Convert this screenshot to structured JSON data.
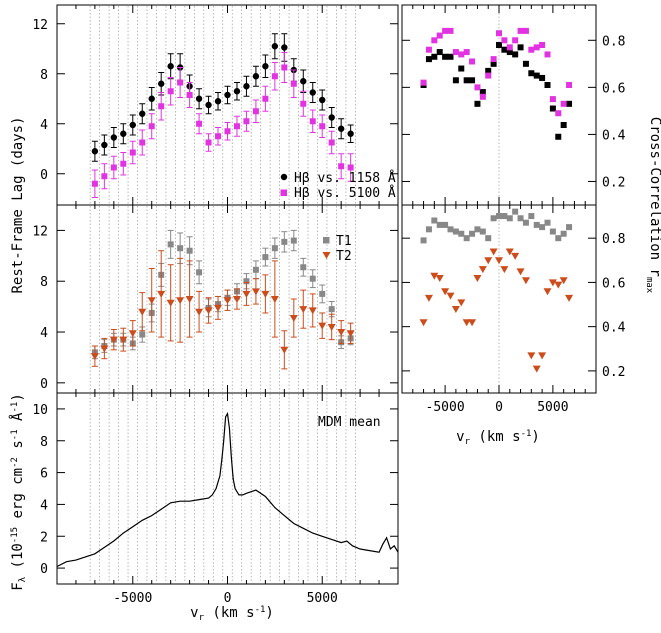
{
  "chart_data": [
    {
      "type": "scatter",
      "panel": "lag-top",
      "xlim": [
        -9000,
        9000
      ],
      "ylim": [
        -2.5,
        13.5
      ],
      "yticks": [
        0,
        4,
        8,
        12
      ],
      "series": [
        {
          "name": "Hβ vs. 1158 Å",
          "color": "#000000",
          "marker": "circle",
          "x": [
            -7000,
            -6500,
            -6000,
            -5500,
            -5000,
            -4500,
            -4000,
            -3500,
            -3000,
            -2500,
            -2000,
            -1500,
            -1000,
            -500,
            0,
            500,
            1000,
            1500,
            2000,
            2500,
            3000,
            3500,
            4000,
            4500,
            5000,
            5500,
            6000,
            6500
          ],
          "y": [
            1.8,
            2.3,
            2.9,
            3.2,
            3.9,
            4.8,
            6.0,
            7.2,
            8.6,
            8.5,
            7.0,
            6.0,
            5.5,
            5.8,
            6.3,
            6.6,
            7.0,
            7.8,
            8.6,
            10.2,
            10.1,
            8.3,
            7.4,
            6.5,
            5.9,
            4.5,
            3.6,
            3.2
          ],
          "err": [
            0.8,
            0.8,
            0.8,
            0.8,
            0.8,
            0.8,
            0.9,
            0.9,
            1.0,
            1.1,
            0.9,
            0.8,
            0.7,
            0.7,
            0.7,
            0.7,
            0.8,
            0.8,
            0.9,
            1.0,
            1.1,
            0.9,
            0.9,
            0.8,
            0.8,
            0.8,
            0.8,
            0.7
          ]
        },
        {
          "name": "Hβ vs. 5100 Å",
          "color": "#e233e2",
          "marker": "square",
          "x": [
            -7000,
            -6500,
            -6000,
            -5500,
            -5000,
            -4500,
            -4000,
            -3500,
            -3000,
            -2500,
            -2000,
            -1500,
            -1000,
            -500,
            0,
            500,
            1000,
            1500,
            2000,
            2500,
            3000,
            3500,
            4000,
            4500,
            5000,
            5500,
            6000,
            6500
          ],
          "y": [
            -0.8,
            -0.2,
            0.5,
            0.8,
            1.7,
            2.5,
            3.8,
            5.4,
            6.6,
            7.3,
            6.3,
            4.0,
            2.5,
            3.0,
            3.4,
            3.8,
            4.2,
            5.0,
            6.0,
            7.8,
            8.5,
            7.2,
            5.6,
            4.2,
            3.8,
            2.5,
            0.6,
            0.5
          ],
          "err": [
            1.1,
            1.0,
            0.9,
            0.9,
            0.9,
            1.0,
            1.0,
            1.1,
            1.1,
            1.2,
            1.0,
            0.8,
            0.7,
            0.7,
            0.7,
            0.8,
            0.8,
            0.9,
            1.0,
            1.1,
            1.2,
            1.1,
            1.0,
            0.9,
            0.9,
            0.9,
            1.0,
            1.1
          ]
        }
      ]
    },
    {
      "type": "scatter",
      "panel": "lag-middle",
      "xlim": [
        -9000,
        9000
      ],
      "ylim": [
        -0.8,
        14
      ],
      "yticks": [
        0,
        4,
        8,
        12
      ],
      "series": [
        {
          "name": "T1",
          "color": "#888888",
          "marker": "square",
          "x": [
            -7000,
            -6500,
            -6000,
            -5500,
            -5000,
            -4500,
            -4000,
            -3500,
            -3000,
            -2500,
            -2000,
            -1500,
            -1000,
            -500,
            0,
            500,
            1000,
            1500,
            2000,
            2500,
            3000,
            3500,
            4000,
            4500,
            5000,
            5500,
            6000,
            6500
          ],
          "y": [
            2.4,
            2.9,
            3.4,
            3.4,
            3.1,
            3.8,
            5.5,
            8.5,
            10.9,
            10.6,
            10.4,
            8.7,
            5.9,
            6.2,
            6.7,
            7.2,
            8.0,
            8.9,
            9.9,
            10.6,
            11.1,
            11.2,
            9.1,
            8.2,
            7.0,
            5.8,
            3.2,
            3.5
          ],
          "err": [
            0.5,
            0.5,
            0.5,
            0.5,
            0.5,
            0.6,
            0.7,
            0.9,
            1.1,
            1.2,
            1.1,
            0.9,
            0.7,
            0.6,
            0.6,
            0.6,
            0.6,
            0.7,
            0.7,
            0.8,
            0.8,
            0.8,
            0.7,
            0.7,
            0.7,
            0.6,
            0.5,
            0.5
          ]
        },
        {
          "name": "T2",
          "color": "#cc4c1b",
          "marker": "triangle-down",
          "x": [
            -7000,
            -6500,
            -6000,
            -5500,
            -5000,
            -4500,
            -4000,
            -3500,
            -3000,
            -2500,
            -2000,
            -1500,
            -1000,
            -500,
            0,
            500,
            1000,
            1500,
            2000,
            2500,
            3000,
            3500,
            4000,
            4500,
            5000,
            5500,
            6000,
            6500
          ],
          "y": [
            2.1,
            2.7,
            3.4,
            3.4,
            3.9,
            5.6,
            6.5,
            7.0,
            6.3,
            6.5,
            6.6,
            5.6,
            5.7,
            5.9,
            6.5,
            6.6,
            7.0,
            7.2,
            7.0,
            6.6,
            2.6,
            5.1,
            5.8,
            5.7,
            4.5,
            4.4,
            4.0,
            3.9
          ],
          "err": [
            0.8,
            0.8,
            0.8,
            0.9,
            1.0,
            1.5,
            2.5,
            3.4,
            3.0,
            3.3,
            3.0,
            1.6,
            1.0,
            0.9,
            0.8,
            0.8,
            0.9,
            1.0,
            1.5,
            3.0,
            1.5,
            1.5,
            1.5,
            1.3,
            1.0,
            1.0,
            0.9,
            0.8
          ]
        }
      ]
    },
    {
      "type": "line",
      "panel": "spectrum",
      "title": "MDM mean",
      "xlabel": "vr (km s⁻¹)",
      "ylabel": "Fλ (10⁻¹⁵ erg cm⁻² s⁻¹ Å⁻¹)",
      "xlim": [
        -9000,
        9000
      ],
      "ylim": [
        -1,
        11
      ],
      "yticks": [
        0,
        2,
        4,
        6,
        8,
        10
      ],
      "xticks": [
        -5000,
        0,
        5000
      ],
      "x": [
        -9000,
        -8500,
        -8000,
        -7500,
        -7000,
        -6500,
        -6000,
        -5500,
        -5000,
        -4500,
        -4000,
        -3500,
        -3000,
        -2500,
        -2000,
        -1500,
        -1000,
        -800,
        -600,
        -400,
        -300,
        -200,
        -100,
        0,
        100,
        200,
        300,
        400,
        600,
        800,
        1000,
        1500,
        2000,
        2500,
        3000,
        3500,
        4000,
        4500,
        5000,
        5500,
        6000,
        6300,
        6600,
        7000,
        7500,
        8000,
        8200,
        8400,
        8600,
        8800,
        9000
      ],
      "y": [
        0.1,
        0.4,
        0.5,
        0.7,
        0.9,
        1.3,
        1.7,
        2.2,
        2.6,
        3.0,
        3.3,
        3.7,
        4.1,
        4.2,
        4.2,
        4.3,
        4.4,
        4.6,
        5.0,
        5.8,
        6.8,
        8.0,
        9.5,
        9.7,
        8.8,
        7.0,
        5.6,
        5.0,
        4.6,
        4.6,
        4.7,
        4.9,
        4.5,
        3.8,
        3.3,
        2.8,
        2.5,
        2.2,
        2.0,
        1.8,
        1.6,
        1.7,
        1.4,
        1.2,
        1.1,
        1.0,
        1.5,
        1.9,
        1.2,
        1.4,
        1.0
      ]
    },
    {
      "type": "scatter",
      "panel": "ccf-top",
      "ylabel": "Cross-Correlation rmax",
      "xlim": [
        -9000,
        9000
      ],
      "ylim": [
        0.1,
        0.95
      ],
      "yticks": [
        0.2,
        0.4,
        0.6,
        0.8
      ],
      "series": [
        {
          "name": "Hβ vs. 1158 Å",
          "color": "#000000",
          "marker": "square",
          "x": [
            -7000,
            -6500,
            -6000,
            -5500,
            -5000,
            -4500,
            -4000,
            -3500,
            -3000,
            -2500,
            -2000,
            -1500,
            -1000,
            -500,
            0,
            500,
            1000,
            1500,
            2000,
            2500,
            3000,
            3500,
            4000,
            4500,
            5000,
            5500,
            6000,
            6500
          ],
          "y": [
            0.61,
            0.72,
            0.73,
            0.75,
            0.73,
            0.73,
            0.63,
            0.68,
            0.63,
            0.63,
            0.53,
            0.58,
            0.67,
            0.7,
            0.78,
            0.76,
            0.75,
            0.74,
            0.77,
            0.7,
            0.66,
            0.65,
            0.64,
            0.61,
            0.51,
            0.39,
            0.44,
            0.53
          ]
        },
        {
          "name": "Hβ vs. 5100 Å",
          "color": "#e233e2",
          "marker": "square",
          "x": [
            -7000,
            -6500,
            -6000,
            -5500,
            -5000,
            -4500,
            -4000,
            -3500,
            -3000,
            -2500,
            -2000,
            -1500,
            -1000,
            -500,
            0,
            500,
            1000,
            1500,
            2000,
            2500,
            3000,
            3500,
            4000,
            4500,
            5000,
            5500,
            6000,
            6500
          ],
          "y": [
            0.62,
            0.76,
            0.8,
            0.82,
            0.84,
            0.84,
            0.75,
            0.74,
            0.75,
            0.71,
            0.6,
            0.56,
            0.65,
            0.72,
            0.83,
            0.8,
            0.77,
            0.8,
            0.84,
            0.84,
            0.76,
            0.77,
            0.78,
            0.74,
            0.55,
            0.49,
            0.53,
            0.61
          ]
        }
      ]
    },
    {
      "type": "scatter",
      "panel": "ccf-bottom",
      "xlabel": "vr (km s⁻¹)",
      "xlim": [
        -9000,
        9000
      ],
      "ylim": [
        0.1,
        0.95
      ],
      "yticks": [
        0.2,
        0.4,
        0.6,
        0.8
      ],
      "xticks": [
        -5000,
        0,
        5000
      ],
      "series": [
        {
          "name": "T1",
          "color": "#888888",
          "marker": "square",
          "x": [
            -7000,
            -6500,
            -6000,
            -5500,
            -5000,
            -4500,
            -4000,
            -3500,
            -3000,
            -2500,
            -2000,
            -1500,
            -1000,
            -500,
            0,
            500,
            1000,
            1500,
            2000,
            2500,
            3000,
            3500,
            4000,
            4500,
            5000,
            5500,
            6000,
            6500
          ],
          "y": [
            0.79,
            0.84,
            0.88,
            0.86,
            0.86,
            0.84,
            0.83,
            0.82,
            0.8,
            0.82,
            0.84,
            0.83,
            0.8,
            0.89,
            0.9,
            0.9,
            0.89,
            0.92,
            0.89,
            0.87,
            0.9,
            0.86,
            0.85,
            0.87,
            0.83,
            0.8,
            0.82,
            0.85
          ]
        },
        {
          "name": "T2",
          "color": "#cc4c1b",
          "marker": "triangle-down",
          "x": [
            -7000,
            -6500,
            -6000,
            -5500,
            -5000,
            -4500,
            -4000,
            -3500,
            -3000,
            -2500,
            -2000,
            -1500,
            -1000,
            -500,
            0,
            500,
            1000,
            1500,
            2000,
            2500,
            3000,
            3500,
            4000,
            4500,
            5000,
            5500,
            6000,
            6500
          ],
          "y": [
            0.42,
            0.53,
            0.63,
            0.62,
            0.56,
            0.54,
            0.48,
            0.51,
            0.42,
            0.42,
            0.62,
            0.66,
            0.7,
            0.74,
            0.7,
            0.66,
            0.74,
            0.72,
            0.65,
            0.61,
            0.27,
            0.21,
            0.27,
            0.56,
            0.6,
            0.59,
            0.61,
            0.53
          ]
        }
      ]
    }
  ],
  "labels": {
    "top_y": "Rest-Frame Lag (days)",
    "right_y": "Cross-Correlation r",
    "right_y_sub": "max",
    "flux_y_main": "F",
    "flux_y_sub": "λ",
    "flux_y_rest": " (10",
    "flux_y_exp1": "-15",
    "flux_y_mid1": " erg cm",
    "flux_y_exp2": "-2",
    "flux_y_mid2": " s",
    "flux_y_exp3": "-1",
    "flux_y_mid3": " Å",
    "flux_y_exp4": "-1",
    "flux_y_end": ")",
    "x_main": "v",
    "x_sub": "r",
    "x_rest": " (km s",
    "x_exp": "-1",
    "x_end": ")",
    "legend_top_1": "Hβ vs. 1158 Å",
    "legend_top_2": "Hβ vs. 5100 Å",
    "legend_mid_1": "T1",
    "legend_mid_2": "T2",
    "spectrum_label": "MDM mean"
  },
  "grid_lines_kms": [
    -7250,
    -6750,
    -6250,
    -5750,
    -5250,
    -4750,
    -4250,
    -3750,
    -3250,
    -2750,
    -2250,
    -1750,
    -1250,
    -750,
    -250,
    250,
    750,
    1250,
    1750,
    2250,
    2750,
    3250,
    3750,
    4250,
    4750,
    5250,
    5750,
    6250,
    6750
  ]
}
